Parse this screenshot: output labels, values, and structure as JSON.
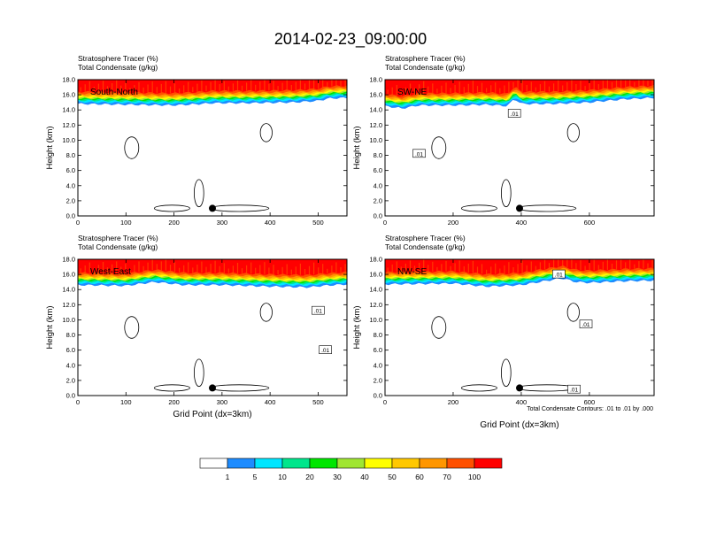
{
  "title": "2014-02-23_09:00:00",
  "panel_subtitle_1": "Stratosphere Tracer   (%)",
  "panel_subtitle_2": "Total Condensate   (g/kg)",
  "contour_note": "Total Condensate Contours: .01 to .01 by .000",
  "contour_label": ".01",
  "colors": {
    "white": "#ffffff",
    "blue": "#1e8cff",
    "cyan": "#00e6ff",
    "teal": "#00e68c",
    "green": "#00e600",
    "lime": "#a0e632",
    "yellow": "#ffff00",
    "gold": "#ffc800",
    "orange": "#ff9600",
    "redorange": "#ff5000",
    "red": "#ff0000"
  },
  "chart_data": [
    {
      "type": "heatmap",
      "panel": "South-North",
      "ylabel": "Height (km)",
      "xlabel": "",
      "ylim": [
        0,
        18
      ],
      "yticks": [
        "0.0",
        "2.0",
        "4.0",
        "6.0",
        "8.0",
        "10.0",
        "12.0",
        "14.0",
        "16.0",
        "18.0"
      ],
      "xlim": [
        0,
        560
      ],
      "xticks": [
        "0",
        "100",
        "200",
        "300",
        "400",
        "500"
      ],
      "xtick_values": [
        0,
        100,
        200,
        300,
        400,
        500
      ],
      "tropopause": [
        [
          0,
          14.8
        ],
        [
          100,
          14.7
        ],
        [
          200,
          14.6
        ],
        [
          260,
          14.8
        ],
        [
          280,
          14.9
        ],
        [
          350,
          14.9
        ],
        [
          450,
          15.0
        ],
        [
          500,
          15.2
        ],
        [
          520,
          15.5
        ],
        [
          560,
          15.6
        ]
      ],
      "marker": {
        "x": 280,
        "y": 1.0
      },
      "contour_labels": []
    },
    {
      "type": "heatmap",
      "panel": "SW-NE",
      "ylabel": "Height (km)",
      "xlabel": "",
      "ylim": [
        0,
        18
      ],
      "yticks": [
        "0.0",
        "2.0",
        "4.0",
        "6.0",
        "8.0",
        "10.0",
        "12.0",
        "14.0",
        "16.0",
        "18.0"
      ],
      "xlim": [
        0,
        790
      ],
      "xticks": [
        "0",
        "200",
        "400",
        "600"
      ],
      "xtick_values": [
        0,
        200,
        400,
        600
      ],
      "tropopause": [
        [
          0,
          14.5
        ],
        [
          50,
          14.2
        ],
        [
          100,
          14.6
        ],
        [
          200,
          14.6
        ],
        [
          300,
          14.7
        ],
        [
          360,
          14.5
        ],
        [
          380,
          15.5
        ],
        [
          400,
          14.8
        ],
        [
          500,
          14.8
        ],
        [
          600,
          15.0
        ],
        [
          700,
          15.4
        ],
        [
          790,
          15.6
        ]
      ],
      "marker": {
        "x": 395,
        "y": 1.0
      },
      "contour_labels": [
        {
          "x": 100,
          "y": 8.2
        },
        {
          "x": 380,
          "y": 13.5
        }
      ]
    },
    {
      "type": "heatmap",
      "panel": "West-East",
      "ylabel": "Height (km)",
      "xlabel": "Grid Point (dx=3km)",
      "ylim": [
        0,
        18
      ],
      "yticks": [
        "0.0",
        "2.0",
        "4.0",
        "6.0",
        "8.0",
        "10.0",
        "12.0",
        "14.0",
        "16.0",
        "18.0"
      ],
      "xlim": [
        0,
        560
      ],
      "xticks": [
        "0",
        "100",
        "200",
        "300",
        "400",
        "500"
      ],
      "xtick_values": [
        0,
        100,
        200,
        300,
        400,
        500
      ],
      "tropopause": [
        [
          0,
          14.6
        ],
        [
          100,
          14.5
        ],
        [
          160,
          15.0
        ],
        [
          220,
          14.6
        ],
        [
          300,
          14.6
        ],
        [
          400,
          14.4
        ],
        [
          480,
          14.3
        ],
        [
          510,
          14.5
        ],
        [
          560,
          14.7
        ]
      ],
      "marker": {
        "x": 280,
        "y": 1.0
      },
      "contour_labels": [
        {
          "x": 500,
          "y": 11.2
        },
        {
          "x": 515,
          "y": 6.0
        }
      ]
    },
    {
      "type": "heatmap",
      "panel": "NW-SE",
      "ylabel": "Height (km)",
      "xlabel": "Grid Point (dx=3km)",
      "ylim": [
        0,
        18
      ],
      "yticks": [
        "0.0",
        "2.0",
        "4.0",
        "6.0",
        "8.0",
        "10.0",
        "12.0",
        "14.0",
        "16.0",
        "18.0"
      ],
      "xlim": [
        0,
        790
      ],
      "xticks": [
        "0",
        "200",
        "400",
        "600"
      ],
      "xtick_values": [
        0,
        200,
        400,
        600
      ],
      "tropopause": [
        [
          0,
          14.7
        ],
        [
          200,
          14.8
        ],
        [
          300,
          14.4
        ],
        [
          400,
          14.6
        ],
        [
          480,
          15.2
        ],
        [
          520,
          15.5
        ],
        [
          560,
          15.0
        ],
        [
          600,
          14.9
        ],
        [
          700,
          15.1
        ],
        [
          790,
          15.2
        ]
      ],
      "marker": {
        "x": 395,
        "y": 1.0
      },
      "contour_labels": [
        {
          "x": 510,
          "y": 16.0
        },
        {
          "x": 590,
          "y": 9.4
        },
        {
          "x": 555,
          "y": 0.8
        }
      ]
    }
  ],
  "legend": {
    "labels": [
      "1",
      "5",
      "10",
      "20",
      "30",
      "40",
      "50",
      "60",
      "70",
      "100"
    ],
    "colors": [
      "#ffffff",
      "#1e8cff",
      "#00e6ff",
      "#00e68c",
      "#00e600",
      "#a0e632",
      "#ffff00",
      "#ffc800",
      "#ff9600",
      "#ff5000",
      "#ff0000"
    ]
  }
}
